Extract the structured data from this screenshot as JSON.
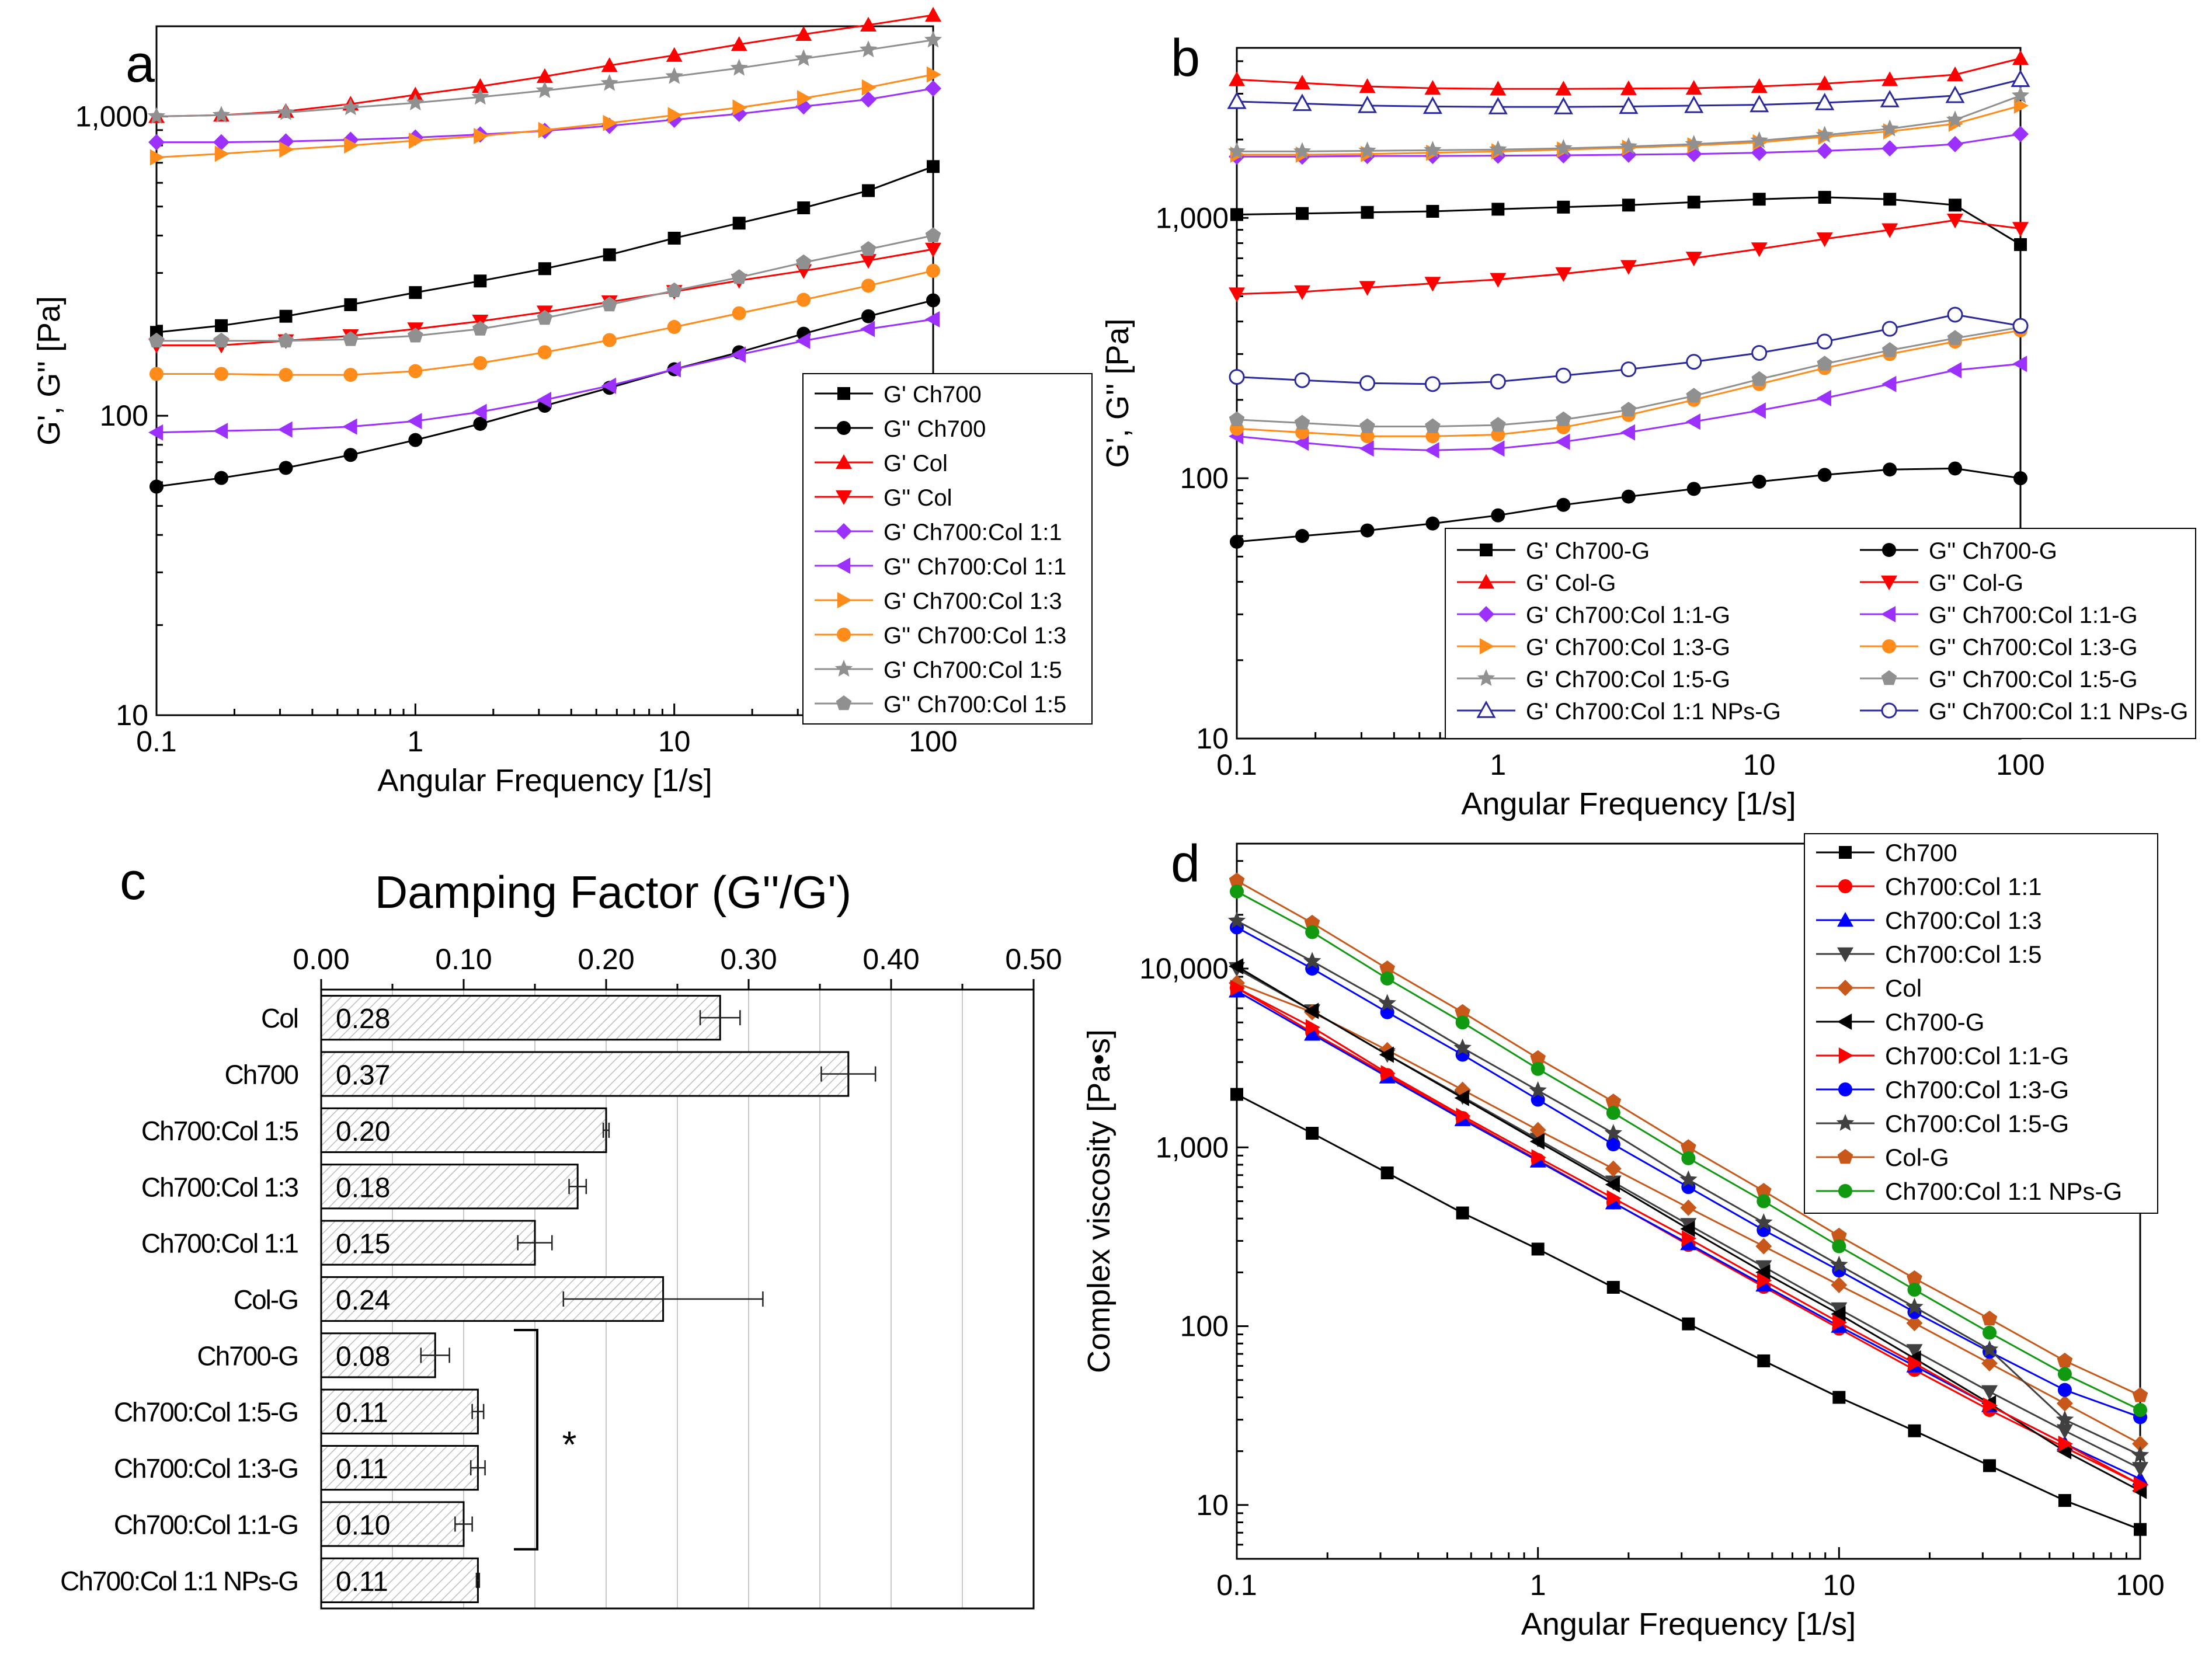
{
  "chart_data": [
    {
      "panel": "a",
      "type": "line",
      "xscale": "log",
      "yscale": "log",
      "xlim": [
        0.1,
        100
      ],
      "ylim": [
        10,
        2000
      ],
      "xticks": [
        "0.1",
        "1",
        "10",
        "100"
      ],
      "yticks": [
        "10",
        "100",
        "1,000"
      ],
      "xlabel": "Angular Frequency [1/s]",
      "ylabel": "G', G'' [Pa]",
      "x": [
        0.1,
        0.178,
        0.316,
        0.562,
        1,
        1.78,
        3.16,
        5.62,
        10,
        17.8,
        31.6,
        56.2,
        100
      ],
      "series": [
        {
          "name": "G' Ch700",
          "color": "#000000",
          "marker": "square",
          "values": [
            190,
            200,
            215,
            235,
            258,
            282,
            310,
            345,
            392,
            440,
            495,
            565,
            680
          ]
        },
        {
          "name": "G'' Ch700",
          "color": "#000000",
          "marker": "circle",
          "values": [
            58,
            62,
            67,
            74,
            83,
            94,
            108,
            124,
            143,
            163,
            188,
            215,
            243
          ]
        },
        {
          "name": "G' Col",
          "color": "#ff0000",
          "marker": "triangle-up",
          "values": [
            1000,
            1010,
            1040,
            1100,
            1180,
            1260,
            1360,
            1480,
            1600,
            1740,
            1880,
            2020,
            2180
          ]
        },
        {
          "name": "G'' Col",
          "color": "#ff0000",
          "marker": "triangle-down",
          "values": [
            172,
            172,
            178,
            185,
            195,
            207,
            222,
            240,
            260,
            283,
            305,
            330,
            360
          ]
        },
        {
          "name": "G' Ch700:Col 1:1",
          "color": "#9b30ff",
          "marker": "diamond",
          "values": [
            820,
            820,
            825,
            835,
            850,
            870,
            895,
            930,
            975,
            1020,
            1080,
            1140,
            1240
          ]
        },
        {
          "name": "G'' Ch700:Col 1:1",
          "color": "#9b30ff",
          "marker": "triangle-left",
          "values": [
            88,
            89,
            90,
            92,
            96,
            103,
            113,
            126,
            143,
            160,
            178,
            195,
            210
          ]
        },
        {
          "name": "G' Ch700:Col 1:3",
          "color": "#ff8c1a",
          "marker": "triangle-right",
          "values": [
            730,
            750,
            775,
            800,
            830,
            860,
            900,
            950,
            1010,
            1070,
            1150,
            1250,
            1380
          ]
        },
        {
          "name": "G'' Ch700:Col 1:3",
          "color": "#ff8c1a",
          "marker": "circle",
          "values": [
            138,
            138,
            137,
            137,
            141,
            150,
            163,
            179,
            198,
            220,
            244,
            272,
            305
          ]
        },
        {
          "name": "G' Ch700:Col 1:5",
          "color": "#909090",
          "marker": "star",
          "values": [
            1000,
            1010,
            1030,
            1070,
            1110,
            1160,
            1220,
            1290,
            1360,
            1450,
            1560,
            1670,
            1800
          ]
        },
        {
          "name": "G'' Ch700:Col 1:5",
          "color": "#909090",
          "marker": "pentagon",
          "values": [
            178,
            178,
            178,
            180,
            185,
            195,
            212,
            235,
            262,
            290,
            325,
            360,
            400
          ]
        }
      ]
    },
    {
      "panel": "b",
      "type": "line",
      "xscale": "log",
      "yscale": "log",
      "xlim": [
        0.1,
        100
      ],
      "ylim": [
        10,
        4500
      ],
      "xticks": [
        "0.1",
        "1",
        "10",
        "100"
      ],
      "yticks": [
        "10",
        "100",
        "1,000"
      ],
      "xlabel": "Angular Frequency [1/s]",
      "ylabel": "G', G'' [Pa]",
      "x": [
        0.1,
        0.178,
        0.316,
        0.562,
        1,
        1.78,
        3.16,
        5.62,
        10,
        17.8,
        31.6,
        56.2,
        100
      ],
      "series": [
        {
          "name": "G' Ch700-G",
          "color": "#000000",
          "marker": "square",
          "values": [
            1030,
            1040,
            1050,
            1060,
            1080,
            1100,
            1120,
            1150,
            1180,
            1200,
            1180,
            1120,
            790
          ]
        },
        {
          "name": "G'' Ch700-G",
          "color": "#000000",
          "marker": "circle",
          "values": [
            57,
            60,
            63,
            67,
            72,
            79,
            85,
            91,
            97,
            103,
            108,
            109,
            100
          ]
        },
        {
          "name": "G' Col-G",
          "color": "#ff0000",
          "marker": "triangle-up",
          "values": [
            3400,
            3300,
            3200,
            3150,
            3130,
            3130,
            3140,
            3150,
            3200,
            3280,
            3400,
            3550,
            4100
          ]
        },
        {
          "name": "G'' Col-G",
          "color": "#ff0000",
          "marker": "triangle-down",
          "values": [
            510,
            520,
            540,
            560,
            580,
            610,
            650,
            700,
            760,
            830,
            900,
            980,
            910
          ]
        },
        {
          "name": "G' Ch700:Col 1:1-G",
          "color": "#9b30ff",
          "marker": "diamond",
          "values": [
            1720,
            1720,
            1730,
            1730,
            1735,
            1740,
            1750,
            1760,
            1780,
            1810,
            1850,
            1920,
            2100
          ]
        },
        {
          "name": "G'' Ch700:Col 1:1-G",
          "color": "#9b30ff",
          "marker": "triangle-left",
          "values": [
            145,
            137,
            130,
            128,
            130,
            138,
            150,
            165,
            182,
            203,
            230,
            260,
            275
          ]
        },
        {
          "name": "G' Ch700:Col 1:3-G",
          "color": "#ff8c1a",
          "marker": "triangle-right",
          "values": [
            1750,
            1750,
            1760,
            1780,
            1800,
            1830,
            1860,
            1900,
            1950,
            2050,
            2150,
            2300,
            2700
          ]
        },
        {
          "name": "G'' Ch700:Col 1:3-G",
          "color": "#ff8c1a",
          "marker": "circle",
          "values": [
            155,
            150,
            145,
            145,
            147,
            157,
            175,
            200,
            230,
            265,
            300,
            335,
            370
          ]
        },
        {
          "name": "G' Ch700:Col 1:5-G",
          "color": "#909090",
          "marker": "star",
          "values": [
            1800,
            1800,
            1810,
            1820,
            1830,
            1850,
            1880,
            1920,
            1980,
            2080,
            2200,
            2380,
            2950
          ]
        },
        {
          "name": "G'' Ch700:Col 1:5-G",
          "color": "#909090",
          "marker": "pentagon",
          "values": [
            168,
            163,
            158,
            158,
            160,
            168,
            183,
            207,
            240,
            275,
            310,
            345,
            380
          ]
        },
        {
          "name": "G' Ch700:Col 1:1 NPs-G",
          "color": "#2a2a9e",
          "marker": "triangle-up-open",
          "values": [
            2800,
            2750,
            2700,
            2680,
            2670,
            2670,
            2680,
            2700,
            2720,
            2770,
            2840,
            2950,
            3400
          ]
        },
        {
          "name": "G'' Ch700:Col 1:1 NPs-G",
          "color": "#2a2a9e",
          "marker": "circle-open",
          "values": [
            245,
            238,
            232,
            230,
            235,
            248,
            262,
            280,
            303,
            335,
            375,
            425,
            385
          ]
        }
      ]
    },
    {
      "panel": "c",
      "type": "bar",
      "orientation": "horizontal",
      "title": "Damping Factor (G''/G')",
      "xlim": [
        0,
        0.5
      ],
      "xticks": [
        "0.00",
        "0.10",
        "0.20",
        "0.30",
        "0.40",
        "0.50"
      ],
      "categories": [
        "Col",
        "Ch700",
        "Ch700:Col 1:5",
        "Ch700:Col 1:3",
        "Ch700:Col 1:1",
        "Col-G",
        "Ch700-G",
        "Ch700:Col 1:5-G",
        "Ch700:Col 1:3-G",
        "Ch700:Col 1:1-G",
        "Ch700:Col 1:1 NPs-G"
      ],
      "values": [
        0.28,
        0.37,
        0.2,
        0.18,
        0.15,
        0.24,
        0.08,
        0.11,
        0.11,
        0.1,
        0.11
      ],
      "labels": [
        "0.28",
        "0.37",
        "0.20",
        "0.18",
        "0.15",
        "0.24",
        "0.08",
        "0.11",
        "0.11",
        "0.10",
        "0.11"
      ],
      "errors": [
        0.014,
        0.019,
        0.002,
        0.006,
        0.012,
        0.07,
        0.01,
        0.004,
        0.005,
        0.006,
        0.001
      ],
      "significance_bracket": {
        "from": "Ch700-G",
        "to": "Ch700:Col 1:1-G",
        "label": "*"
      }
    },
    {
      "panel": "d",
      "type": "line",
      "xscale": "log",
      "yscale": "log",
      "xlim": [
        0.1,
        100
      ],
      "ylim": [
        5,
        50000
      ],
      "xticks": [
        "0.1",
        "1",
        "10",
        "100"
      ],
      "yticks": [
        "10",
        "100",
        "1,000",
        "10,000"
      ],
      "xlabel": "Angular Frequency [1/s]",
      "ylabel": "Complex  viscosity [Pa•s]",
      "x": [
        0.1,
        0.178,
        0.316,
        0.562,
        1,
        1.78,
        3.16,
        5.62,
        10,
        17.8,
        31.6,
        56.2,
        100
      ],
      "series": [
        {
          "name": "Ch700",
          "color": "#000000",
          "marker": "square",
          "values": [
            1980,
            1200,
            720,
            430,
            270,
            165,
            103,
            64,
            40,
            26,
            16.6,
            10.6,
            7.3
          ]
        },
        {
          "name": "Ch700:Col 1:1",
          "color": "#ff0000",
          "marker": "circle",
          "values": [
            7800,
            4400,
            2540,
            1460,
            850,
            492,
            285,
            166,
            97,
            57,
            34,
            21,
            13
          ]
        },
        {
          "name": "Ch700:Col 1:3",
          "color": "#0000ff",
          "marker": "triangle-up",
          "values": [
            7500,
            4300,
            2480,
            1430,
            840,
            490,
            290,
            170,
            100,
            60,
            36,
            22,
            14
          ]
        },
        {
          "name": "Ch700:Col 1:5",
          "color": "#404040",
          "marker": "triangle-down",
          "values": [
            10000,
            5800,
            3300,
            1920,
            1110,
            640,
            370,
            215,
            125,
            73,
            43,
            26,
            16
          ]
        },
        {
          "name": "Col",
          "color": "#c8581a",
          "marker": "diamond",
          "values": [
            8300,
            5700,
            3500,
            2100,
            1250,
            760,
            460,
            280,
            170,
            104,
            62,
            37,
            22
          ]
        },
        {
          "name": "Ch700-G",
          "color": "#000000",
          "marker": "triangle-left",
          "values": [
            10300,
            5800,
            3300,
            1890,
            1080,
            620,
            350,
            200,
            117,
            66,
            37,
            20,
            12
          ]
        },
        {
          "name": "Ch700:Col 1:1-G",
          "color": "#ff0000",
          "marker": "triangle-right",
          "values": [
            7800,
            4700,
            2600,
            1500,
            880,
            520,
            310,
            180,
            105,
            62,
            36,
            22,
            13
          ]
        },
        {
          "name": "Ch700:Col 1:3-G",
          "color": "#0000ff",
          "marker": "circle",
          "values": [
            17000,
            10000,
            5700,
            3300,
            1850,
            1040,
            600,
            345,
            205,
            120,
            72,
            44,
            31
          ]
        },
        {
          "name": "Ch700:Col 1:5-G",
          "color": "#404040",
          "marker": "star",
          "values": [
            18500,
            11000,
            6400,
            3600,
            2080,
            1200,
            660,
            380,
            220,
            128,
            74,
            30,
            19
          ]
        },
        {
          "name": "Col-G",
          "color": "#c8581a",
          "marker": "pentagon",
          "values": [
            31000,
            18000,
            10000,
            5700,
            3150,
            1800,
            1000,
            570,
            320,
            185,
            110,
            64,
            41
          ]
        },
        {
          "name": "Ch700:Col 1:1 NPs-G",
          "color": "#119911",
          "marker": "circle",
          "values": [
            27000,
            16000,
            8800,
            5000,
            2750,
            1560,
            870,
            500,
            280,
            160,
            92,
            54,
            34
          ]
        }
      ]
    }
  ]
}
